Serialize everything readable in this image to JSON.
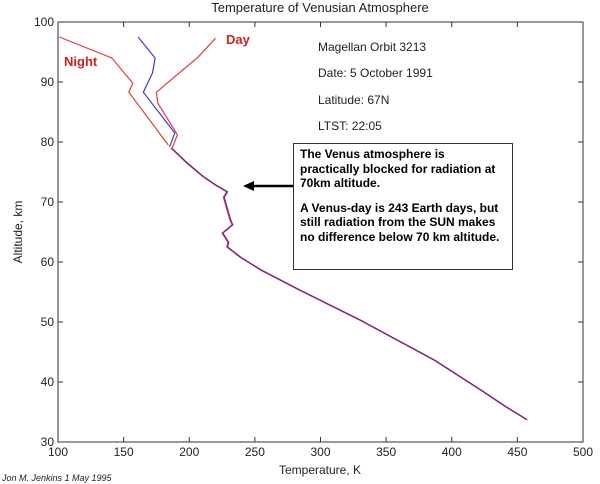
{
  "chart_data": {
    "type": "line",
    "title": "Temperature of Venusian Atmosphere",
    "xlabel": "Temperature, K",
    "ylabel": "Altitude, km",
    "xlim": [
      100,
      500
    ],
    "ylim": [
      30,
      100
    ],
    "xticks": [
      100,
      150,
      200,
      250,
      300,
      350,
      400,
      450,
      500
    ],
    "yticks": [
      30,
      40,
      50,
      60,
      70,
      80,
      90,
      100
    ],
    "grid": false,
    "series": [
      {
        "name": "Night",
        "color": "#e0403a",
        "points": [
          [
            101,
            97.5
          ],
          [
            141,
            94
          ],
          [
            157,
            89.8
          ],
          [
            154,
            88.3
          ],
          [
            184,
            79.5
          ]
        ]
      },
      {
        "name": "",
        "color": "#3a3ad8",
        "points": [
          [
            161,
            97.5
          ],
          [
            174,
            94
          ],
          [
            172,
            91.5
          ],
          [
            165,
            88.3
          ],
          [
            189,
            81.5
          ],
          [
            185,
            79.2
          ]
        ]
      },
      {
        "name": "Day",
        "color": "#e0403a",
        "points": [
          [
            220,
            97.3
          ],
          [
            207,
            94.2
          ],
          [
            195,
            92
          ],
          [
            175,
            88.3
          ],
          [
            176,
            86.5
          ],
          [
            191,
            81.2
          ],
          [
            187,
            79
          ]
        ]
      }
    ],
    "common_profile": {
      "color": "#6a2a8a",
      "points": [
        [
          186,
          79
        ],
        [
          198,
          76.5
        ],
        [
          210.5,
          74.2
        ],
        [
          220,
          72.8
        ],
        [
          228.6,
          71.7
        ],
        [
          226,
          70.8
        ],
        [
          231,
          67
        ],
        [
          232.6,
          66.2
        ],
        [
          225,
          64.8
        ],
        [
          229.5,
          63.3
        ],
        [
          228.6,
          62.5
        ],
        [
          238.7,
          60.8
        ],
        [
          254,
          58.7
        ],
        [
          284,
          55.3
        ],
        [
          330,
          50.3
        ],
        [
          386,
          43.7
        ],
        [
          421.5,
          38.7
        ],
        [
          440,
          36
        ],
        [
          457,
          33.7
        ]
      ]
    },
    "annotations": {
      "night_label": "Night",
      "day_label": "Day",
      "orbit": "Magellan Orbit 3213",
      "date": "Date: 5 October 1991",
      "latitude": "Latitude: 67N",
      "ltst": "LTST: 22:05",
      "box_p1": "The Venus atmosphere is practically blocked for radiation at 70km altitude.",
      "box_p2": "A Venus-day is 243 Earth days, but still radiation from the SUN makes no difference below 70 km altitude.",
      "arrow_altitude": 72,
      "credit": "Jon M. Jenkins  1 May 1995"
    }
  }
}
